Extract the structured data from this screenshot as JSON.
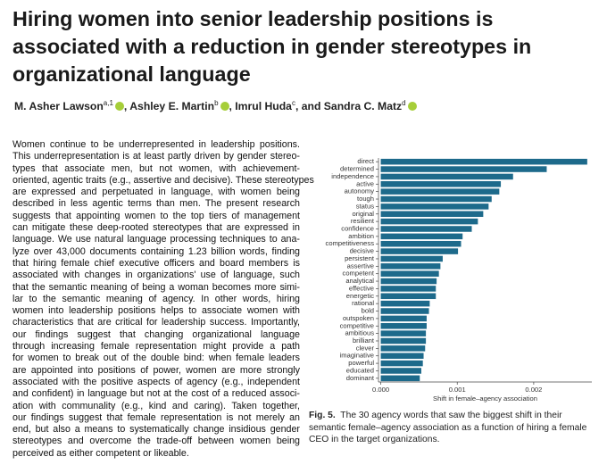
{
  "paper": {
    "title_lines": [
      "Hiring women into senior leadership positions is",
      "associated with a reduction in gender stereotypes in",
      "organizational language"
    ],
    "authors": [
      {
        "name": "M. Asher Lawson",
        "affiliation": "a,1",
        "orcid": true
      },
      {
        "name": "Ashley E. Martin",
        "affiliation": "b",
        "orcid": true
      },
      {
        "name": "Imrul Huda",
        "affiliation": "c",
        "orcid": false
      },
      {
        "name": "Sandra C. Matz",
        "affiliation": "d",
        "orcid": true
      }
    ],
    "author_separators": [
      ", ",
      ", ",
      ", and "
    ],
    "abstract_lines": [
      "Women continue to be underrepresented in leadership positions.",
      "This underrepresentation is at least partly driven by gender stereo-",
      "types that associate men, but not women, with achievement-",
      "oriented, agentic traits (e.g., assertive and decisive). These stereotypes",
      "are expressed and perpetuated in language, with women being",
      "described in less agentic terms than men. The present research",
      "suggests that appointing women to the top tiers of management",
      "can mitigate these deep-rooted stereotypes that are expressed in",
      "language. We use natural language processing techniques to ana-",
      "lyze over 43,000 documents containing 1.23 billion words, finding",
      "that hiring female chief executive officers and board members is",
      "associated with changes in organizations' use of language, such",
      "that the semantic meaning of being a woman becomes more simi-",
      "lar to the semantic meaning of agency. In other words, hiring",
      "women into leadership positions helps to associate women with",
      "characteristics that are critical for leadership success. Importantly,",
      "our findings suggest that changing organizational language",
      "through increasing female representation might provide a path",
      "for women to break out of the double bind: when female leaders",
      "are appointed into positions of power, women are more strongly",
      "associated with the positive aspects of agency (e.g., independent",
      "and confident) in language but not at the cost of a reduced associ-",
      "ation with communality (e.g., kind and caring). Taken together,",
      "our findings suggest that female representation is not merely an",
      "end, but also a means to systematically change insidious gender",
      "stereotypes and overcome the trade-off between women being",
      "perceived as either competent or likeable."
    ],
    "figure_label": "Fig. 5.",
    "caption": "The 30 agency words that saw the biggest shift in their semantic female–agency association as a function of hiring a female CEO in the target organizations."
  },
  "chart_data": {
    "type": "barh",
    "categories": [
      "direct",
      "determined",
      "independence",
      "active",
      "autonomy",
      "tough",
      "status",
      "original",
      "resilient",
      "confidence",
      "ambition",
      "competitiveness",
      "decisive",
      "persistent",
      "assertive",
      "competent",
      "analytical",
      "effective",
      "energetic",
      "rational",
      "bold",
      "outspoken",
      "competitive",
      "ambitious",
      "brilliant",
      "clever",
      "imaginative",
      "powerful",
      "educated",
      "dominant"
    ],
    "values": [
      0.0027,
      0.00217,
      0.00173,
      0.00157,
      0.00155,
      0.00145,
      0.00141,
      0.00134,
      0.00127,
      0.00119,
      0.00107,
      0.00105,
      0.00101,
      0.00081,
      0.00078,
      0.00076,
      0.00073,
      0.00072,
      0.00072,
      0.00064,
      0.00063,
      0.0006,
      0.0006,
      0.00059,
      0.00059,
      0.00058,
      0.00056,
      0.00055,
      0.00053,
      0.00051
    ],
    "color": "#1d6a8b",
    "xlabel": "Shift in female–agency association",
    "xlim": [
      -3e-05,
      0.00276
    ],
    "xticks": [
      {
        "value": 0,
        "label": "0.000"
      },
      {
        "value": 0.001,
        "label": "0.001"
      },
      {
        "value": 0.002,
        "label": "0.002"
      }
    ]
  }
}
